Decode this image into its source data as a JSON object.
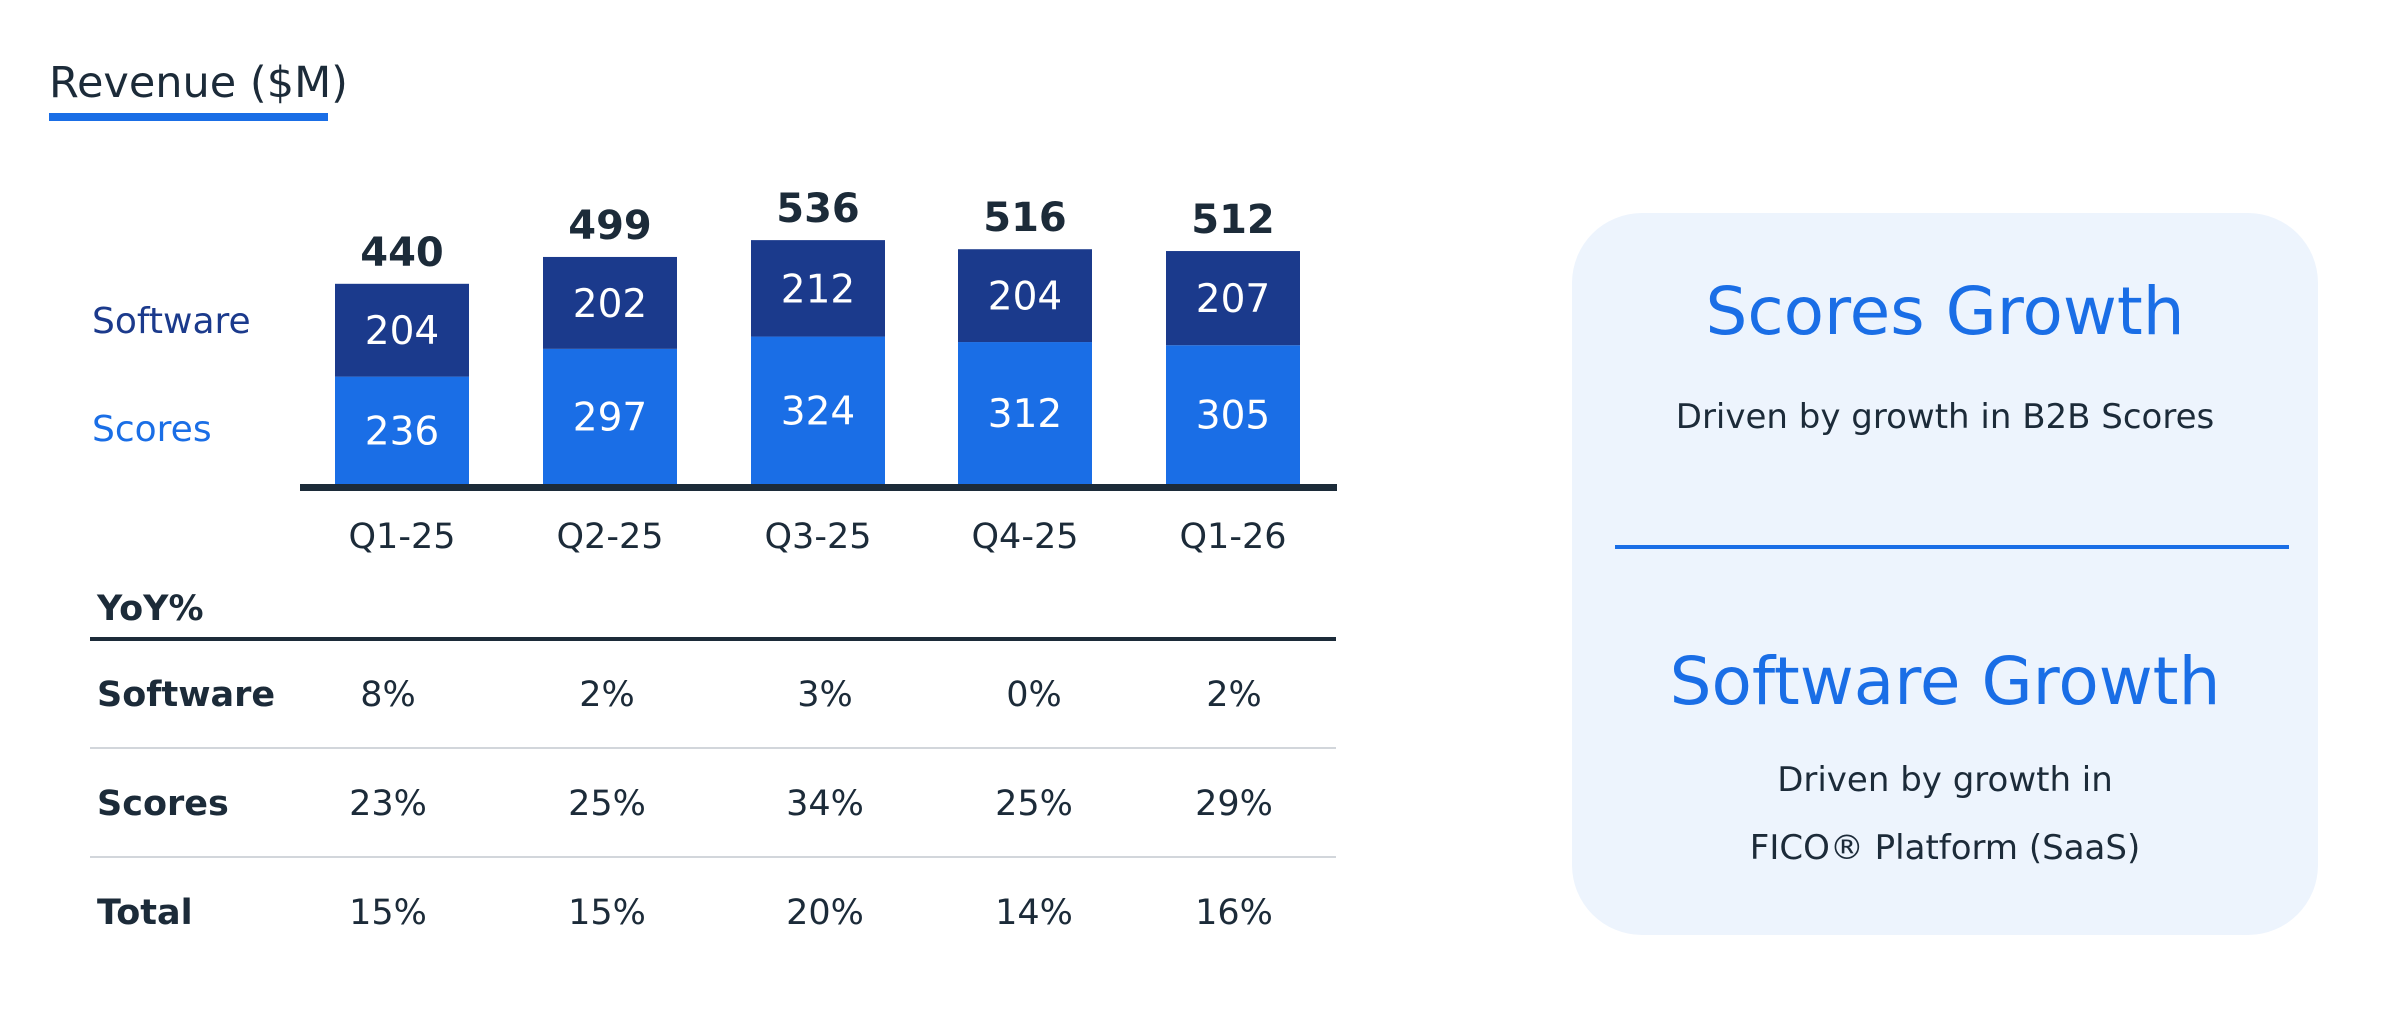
{
  "chart_data": {
    "type": "bar",
    "stacked": true,
    "title": "Revenue ($M)",
    "categories": [
      "Q1-25",
      "Q2-25",
      "Q3-25",
      "Q4-25",
      "Q1-26"
    ],
    "series": [
      {
        "name": "Scores",
        "values": [
          236,
          297,
          324,
          312,
          305
        ],
        "color": "#1a6ee6"
      },
      {
        "name": "Software",
        "values": [
          204,
          202,
          212,
          204,
          207
        ],
        "color": "#1b3a8c"
      }
    ],
    "totals": [
      440,
      499,
      536,
      516,
      512
    ],
    "legend_position": "left"
  },
  "yoy": {
    "header": "YoY%",
    "rows": [
      {
        "label": "Software",
        "values": [
          "8%",
          "2%",
          "3%",
          "0%",
          "2%"
        ]
      },
      {
        "label": "Scores",
        "values": [
          "23%",
          "25%",
          "34%",
          "25%",
          "29%"
        ]
      },
      {
        "label": "Total",
        "values": [
          "15%",
          "15%",
          "20%",
          "14%",
          "16%"
        ]
      }
    ]
  },
  "panel": {
    "scores_heading": "Scores Growth",
    "scores_text": "Driven by growth in B2B Scores",
    "software_heading": "Software Growth",
    "software_text_line1": "Driven by growth in",
    "software_text_line2": "FICO® Platform (SaaS)"
  },
  "colors": {
    "accent": "#1a6ee6",
    "software": "#1b3a8c",
    "scores": "#1a6ee6",
    "panel_bg": "#edf4fd",
    "text": "#1c2b39"
  }
}
